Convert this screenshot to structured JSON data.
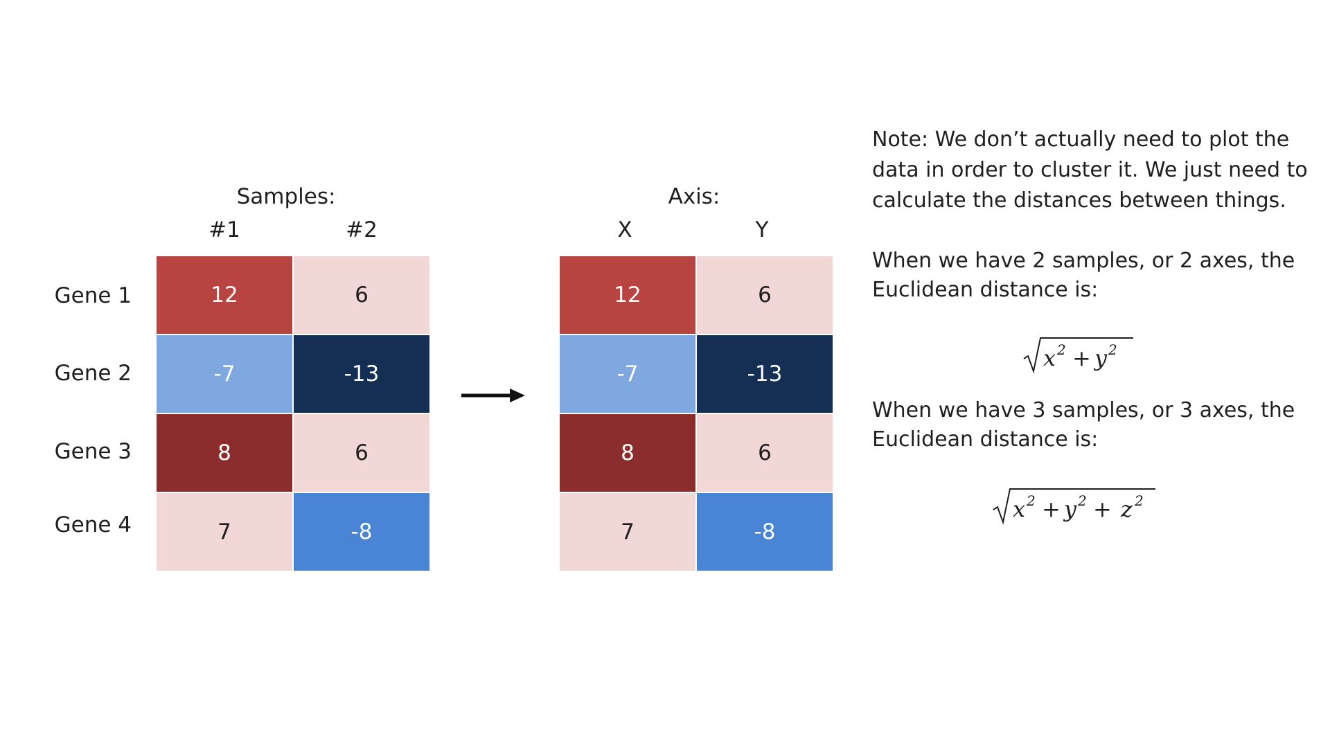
{
  "left_matrix": {
    "group_label": "Samples:",
    "columns": [
      "#1",
      "#2"
    ],
    "rows": [
      "Gene 1",
      "Gene 2",
      "Gene 3",
      "Gene 4"
    ],
    "values": [
      [
        "12",
        "6"
      ],
      [
        "-7",
        "-13"
      ],
      [
        "8",
        "6"
      ],
      [
        "7",
        "-8"
      ]
    ],
    "colors": [
      [
        "#b84441",
        "#f2d7d7"
      ],
      [
        "#7ea8df",
        "#152f54"
      ],
      [
        "#8a2d2c",
        "#f2d7d7"
      ],
      [
        "#f2d7d7",
        "#4a84d4"
      ]
    ]
  },
  "right_matrix": {
    "group_label": "Axis:",
    "columns": [
      "X",
      "Y"
    ],
    "values": [
      [
        "12",
        "6"
      ],
      [
        "-7",
        "-13"
      ],
      [
        "8",
        "6"
      ],
      [
        "7",
        "-8"
      ]
    ],
    "colors": [
      [
        "#b84441",
        "#f2d7d7"
      ],
      [
        "#7ea8df",
        "#152f54"
      ],
      [
        "#8a2d2c",
        "#f2d7d7"
      ],
      [
        "#f2d7d7",
        "#4a84d4"
      ]
    ]
  },
  "arrow_icon": "right-arrow",
  "notes": {
    "note": "Note: We don’t actually need to plot the data in order to cluster it. We just need to calculate the distances between things.",
    "two_axes": "When we have 2 samples, or 2 axes, the Euclidean distance is:",
    "three_axes": "When we have 3 samples, or 3 axes, the Euclidean distance is:"
  }
}
